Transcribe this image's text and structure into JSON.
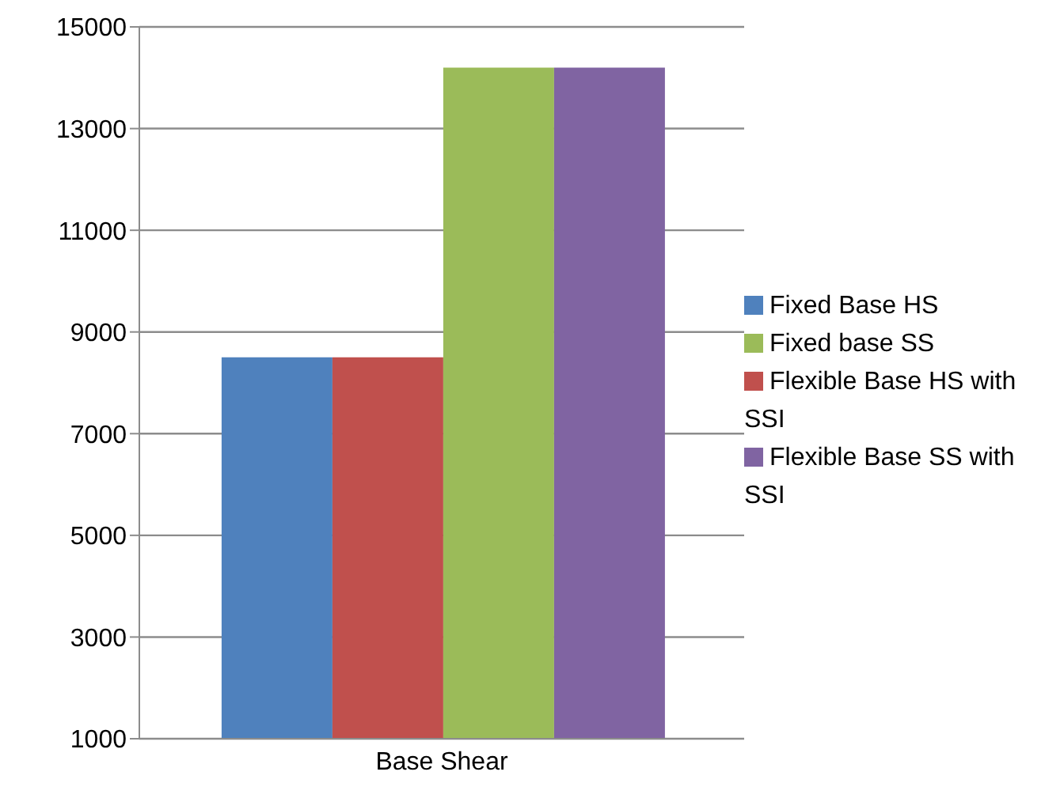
{
  "chart_data": {
    "type": "bar",
    "categories": [
      "Base Shear"
    ],
    "series": [
      {
        "name": "Fixed Base HS",
        "color": "#4f81bd",
        "values": [
          8500
        ]
      },
      {
        "name": "Flexible Base HS with SSI",
        "color": "#c0504d",
        "values": [
          8500
        ]
      },
      {
        "name": "Fixed base SS",
        "color": "#9bbb59",
        "values": [
          14200
        ]
      },
      {
        "name": "Flexible Base SS with SSI",
        "color": "#8064a2",
        "values": [
          14200
        ]
      }
    ],
    "ylim": [
      1000,
      15000
    ],
    "yticks": [
      1000,
      3000,
      5000,
      7000,
      9000,
      11000,
      13000,
      15000
    ],
    "grid": "y",
    "legend": "right"
  }
}
